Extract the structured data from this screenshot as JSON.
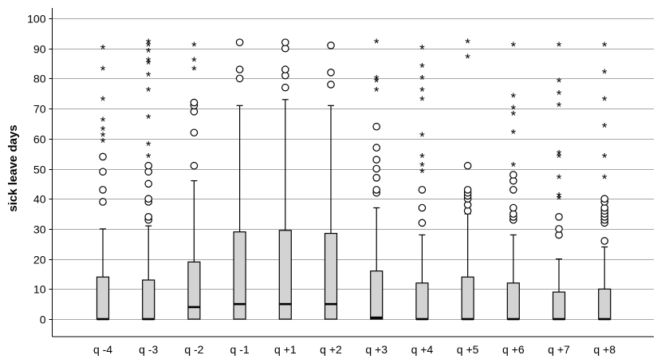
{
  "chart_data": {
    "type": "boxplot",
    "title": "",
    "xlabel": "",
    "ylabel": "sick leave days",
    "ylim": [
      0,
      100
    ],
    "yticks": [
      0,
      10,
      20,
      30,
      40,
      50,
      60,
      70,
      80,
      90,
      100
    ],
    "grid": "horizontal",
    "colors": {
      "box_fill": "#d3d3d3",
      "stroke": "#000000",
      "grid": "#a6a6a6",
      "axis": "#000000"
    },
    "categories": [
      "q -4",
      "q -3",
      "q -2",
      "q -1",
      "q +1",
      "q +2",
      "q +3",
      "q +4",
      "q +5",
      "q +6",
      "q +7",
      "q +8"
    ],
    "boxes": [
      {
        "min": 0,
        "q1": 0,
        "median": 0,
        "q3": 14,
        "max": 30,
        "outliers": [
          39,
          43,
          49,
          54
        ],
        "extremes": [
          59,
          61,
          63,
          66,
          73,
          83,
          90
        ]
      },
      {
        "min": 0,
        "q1": 0,
        "median": 0,
        "q3": 13,
        "max": 31,
        "outliers": [
          33,
          34,
          39,
          40,
          45,
          49,
          51
        ],
        "extremes": [
          54,
          58,
          67,
          76,
          81,
          85,
          86,
          89,
          91,
          92
        ]
      },
      {
        "min": 0,
        "q1": 0,
        "median": 4,
        "q3": 19,
        "max": 46,
        "outliers": [
          51,
          62,
          69,
          71,
          72
        ],
        "extremes": [
          83,
          86,
          91
        ]
      },
      {
        "min": 0,
        "q1": 0,
        "median": 5,
        "q3": 29,
        "max": 71,
        "outliers": [
          80,
          83,
          92
        ],
        "extremes": []
      },
      {
        "min": 0,
        "q1": 0,
        "median": 5,
        "q3": 29.5,
        "max": 73,
        "outliers": [
          77,
          81,
          83,
          90,
          92
        ],
        "extremes": []
      },
      {
        "min": 0,
        "q1": 0,
        "median": 5,
        "q3": 28.5,
        "max": 71,
        "outliers": [
          78,
          82,
          91
        ],
        "extremes": []
      },
      {
        "min": 0,
        "q1": 0,
        "median": 0.5,
        "q3": 16,
        "max": 37,
        "outliers": [
          42,
          43,
          47,
          50,
          53,
          57,
          64
        ],
        "extremes": [
          76,
          79,
          80,
          92
        ]
      },
      {
        "min": 0,
        "q1": 0,
        "median": 0,
        "q3": 12,
        "max": 28,
        "outliers": [
          32,
          37,
          43
        ],
        "extremes": [
          49,
          51,
          54,
          61,
          73,
          76,
          80,
          84,
          90
        ]
      },
      {
        "min": 0,
        "q1": 0,
        "median": 0,
        "q3": 14,
        "max": 35,
        "outliers": [
          36,
          38,
          40,
          41,
          42,
          43,
          51
        ],
        "extremes": [
          87,
          92
        ]
      },
      {
        "min": 0,
        "q1": 0,
        "median": 0,
        "q3": 12,
        "max": 28,
        "outliers": [
          33,
          34,
          35,
          37,
          43,
          46,
          48
        ],
        "extremes": [
          51,
          62,
          68,
          70,
          74,
          91
        ]
      },
      {
        "min": 0,
        "q1": 0,
        "median": 0,
        "q3": 9,
        "max": 20,
        "outliers": [
          28,
          30,
          34
        ],
        "extremes": [
          40,
          41,
          47,
          54,
          55,
          71,
          75,
          79,
          91
        ]
      },
      {
        "min": 0,
        "q1": 0,
        "median": 0,
        "q3": 10,
        "max": 24,
        "outliers": [
          26,
          32,
          33,
          34,
          35,
          36,
          37,
          39,
          40
        ],
        "extremes": [
          47,
          54,
          64,
          73,
          82,
          91
        ]
      }
    ]
  }
}
